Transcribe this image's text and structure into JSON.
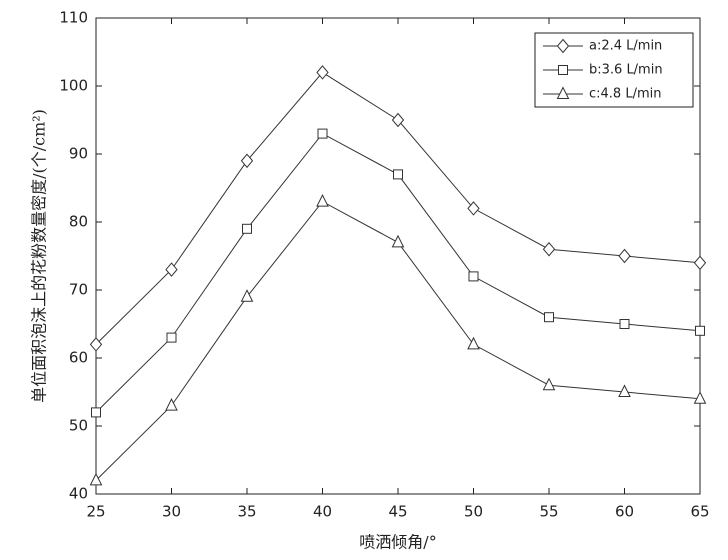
{
  "chart_data": {
    "type": "line",
    "x_label": "喷洒倾角/°",
    "y_label": "单位面积泡沫上的花粉数量密度/(个/cm²)",
    "x": [
      25,
      30,
      35,
      40,
      45,
      50,
      55,
      60,
      65
    ],
    "series": [
      {
        "name": "a:2.4 L/min",
        "color": "#333333",
        "marker": "diamond",
        "values": [
          62,
          73,
          89,
          102,
          95,
          82,
          76,
          75,
          74
        ]
      },
      {
        "name": "b:3.6 L/min",
        "color": "#333333",
        "marker": "square",
        "values": [
          52,
          63,
          79,
          93,
          87,
          72,
          66,
          65,
          64
        ]
      },
      {
        "name": "c:4.8 L/min",
        "color": "#333333",
        "marker": "triangle",
        "values": [
          42,
          53,
          69,
          83,
          77,
          62,
          56,
          55,
          54
        ]
      }
    ],
    "xlim": [
      25,
      65
    ],
    "xticks": [
      25,
      30,
      35,
      40,
      45,
      50,
      55,
      60,
      65
    ],
    "ylim": [
      40,
      110
    ],
    "yticks": [
      40,
      50,
      60,
      70,
      80,
      90,
      100,
      110
    ],
    "legend": "top-right",
    "grid": false
  }
}
